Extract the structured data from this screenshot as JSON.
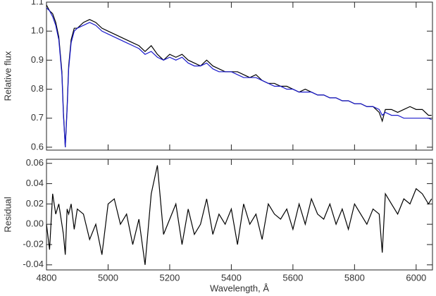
{
  "chart_data": [
    {
      "type": "line",
      "ylabel": "Relative flux",
      "x": [
        4800,
        4810,
        4820,
        4830,
        4840,
        4850,
        4855,
        4861,
        4867,
        4872,
        4880,
        4890,
        4900,
        4920,
        4940,
        4960,
        4980,
        5000,
        5020,
        5040,
        5060,
        5080,
        5100,
        5120,
        5140,
        5160,
        5180,
        5200,
        5220,
        5240,
        5260,
        5280,
        5300,
        5320,
        5340,
        5360,
        5380,
        5400,
        5420,
        5440,
        5460,
        5480,
        5500,
        5520,
        5540,
        5560,
        5580,
        5600,
        5620,
        5640,
        5660,
        5680,
        5700,
        5720,
        5740,
        5760,
        5780,
        5800,
        5820,
        5840,
        5860,
        5880,
        5890,
        5900,
        5920,
        5940,
        5960,
        5980,
        6000,
        6020,
        6040,
        6050
      ],
      "series": [
        {
          "color": "#000000",
          "values": [
            1.09,
            1.07,
            1.06,
            1.03,
            0.98,
            0.86,
            0.72,
            0.6,
            0.74,
            0.88,
            0.97,
            1.01,
            1.01,
            1.03,
            1.04,
            1.03,
            1.01,
            1.0,
            0.99,
            0.98,
            0.97,
            0.96,
            0.95,
            0.93,
            0.95,
            0.92,
            0.9,
            0.92,
            0.91,
            0.92,
            0.9,
            0.89,
            0.88,
            0.9,
            0.88,
            0.87,
            0.86,
            0.86,
            0.86,
            0.85,
            0.84,
            0.85,
            0.83,
            0.82,
            0.82,
            0.81,
            0.81,
            0.8,
            0.79,
            0.8,
            0.79,
            0.78,
            0.78,
            0.77,
            0.77,
            0.76,
            0.76,
            0.75,
            0.75,
            0.74,
            0.74,
            0.72,
            0.69,
            0.73,
            0.73,
            0.72,
            0.73,
            0.74,
            0.73,
            0.73,
            0.71,
            0.71
          ]
        },
        {
          "color": "#1a1acc",
          "values": [
            1.08,
            1.07,
            1.05,
            1.02,
            0.97,
            0.85,
            0.71,
            0.6,
            0.73,
            0.87,
            0.96,
            1.0,
            1.01,
            1.02,
            1.03,
            1.02,
            1.0,
            0.99,
            0.98,
            0.97,
            0.96,
            0.95,
            0.94,
            0.92,
            0.93,
            0.91,
            0.9,
            0.91,
            0.9,
            0.91,
            0.89,
            0.88,
            0.88,
            0.89,
            0.87,
            0.86,
            0.86,
            0.86,
            0.85,
            0.84,
            0.84,
            0.84,
            0.83,
            0.82,
            0.81,
            0.81,
            0.8,
            0.8,
            0.79,
            0.79,
            0.79,
            0.78,
            0.78,
            0.77,
            0.77,
            0.76,
            0.76,
            0.75,
            0.75,
            0.74,
            0.74,
            0.73,
            0.71,
            0.72,
            0.71,
            0.71,
            0.7,
            0.7,
            0.7,
            0.7,
            0.7,
            0.695
          ]
        }
      ],
      "xlim": [
        4800,
        6053
      ],
      "xticks": [
        4800,
        5000,
        5200,
        5400,
        5600,
        5800,
        6000
      ],
      "ylim": [
        0.59,
        1.1
      ],
      "yticks": [
        0.6,
        0.7,
        0.8,
        0.9,
        {
          "value": 1,
          "label": "1.0"
        },
        1.1
      ]
    },
    {
      "type": "line",
      "ylabel": "Residual",
      "xlabel": "Wavelength, Å",
      "x": [
        4800,
        4810,
        4820,
        4830,
        4840,
        4850,
        4855,
        4861,
        4867,
        4872,
        4880,
        4890,
        4900,
        4920,
        4940,
        4960,
        4980,
        5000,
        5020,
        5040,
        5060,
        5080,
        5100,
        5120,
        5140,
        5160,
        5180,
        5200,
        5220,
        5240,
        5260,
        5280,
        5300,
        5320,
        5340,
        5360,
        5380,
        5400,
        5420,
        5440,
        5460,
        5480,
        5500,
        5520,
        5540,
        5560,
        5580,
        5600,
        5620,
        5640,
        5660,
        5680,
        5700,
        5720,
        5740,
        5760,
        5780,
        5800,
        5820,
        5840,
        5860,
        5880,
        5890,
        5900,
        5920,
        5940,
        5960,
        5980,
        6000,
        6020,
        6040,
        6050
      ],
      "series": [
        {
          "color": "#000000",
          "values": [
            0.0,
            -0.025,
            0.03,
            0.01,
            0.02,
            0.0,
            -0.01,
            -0.03,
            0.015,
            0.01,
            0.02,
            -0.005,
            0.015,
            0.01,
            -0.015,
            0.0,
            -0.03,
            0.02,
            0.025,
            0.0,
            0.01,
            -0.02,
            0.005,
            -0.04,
            0.03,
            0.058,
            -0.01,
            0.005,
            0.02,
            -0.02,
            0.015,
            -0.01,
            0.0,
            0.025,
            -0.01,
            0.01,
            0.0,
            0.015,
            -0.02,
            0.02,
            0.0,
            0.01,
            -0.015,
            0.02,
            0.01,
            0.005,
            0.015,
            -0.005,
            0.02,
            0.0,
            0.025,
            0.01,
            0.005,
            0.02,
            0.0,
            0.015,
            -0.005,
            0.02,
            0.01,
            0.0,
            0.015,
            0.01,
            -0.028,
            0.03,
            0.02,
            0.01,
            0.025,
            0.02,
            0.035,
            0.03,
            0.02,
            0.025
          ]
        }
      ],
      "xlim": [
        4800,
        6053
      ],
      "xticks": [
        4800,
        5000,
        5200,
        5400,
        5600,
        5800,
        6000
      ],
      "ylim": [
        -0.045,
        0.064
      ],
      "yticks": [
        -0.04,
        -0.02,
        {
          "value": 0,
          "label": "0.00"
        },
        0.02,
        0.04,
        0.06
      ]
    }
  ]
}
